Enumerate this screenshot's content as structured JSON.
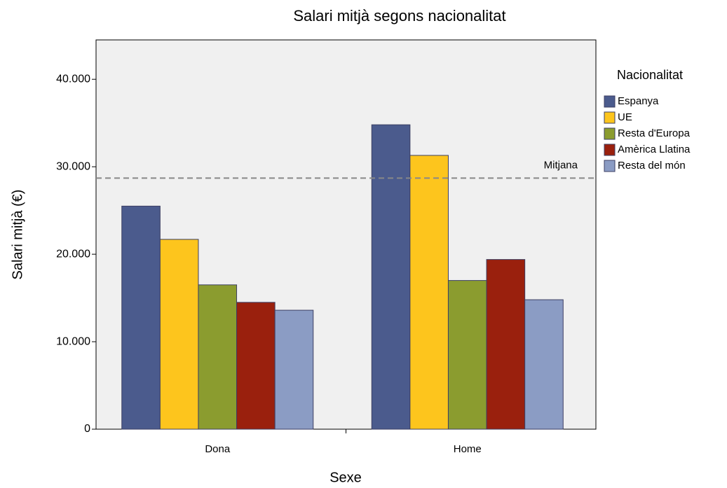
{
  "chart_data": {
    "type": "bar",
    "title": "Salari mitjà segons nacionalitat",
    "x_label": "Sexe",
    "y_label": "Salari mitjà (€)",
    "categories": [
      "Dona",
      "Home"
    ],
    "legend_title": "Nacionalitat",
    "series": [
      {
        "name": "Espanya",
        "color": "#4b5b8d",
        "values": [
          25500,
          34800
        ]
      },
      {
        "name": "UE",
        "color": "#fdc51d",
        "values": [
          21700,
          31300
        ]
      },
      {
        "name": "Resta d'Europa",
        "color": "#8b9c2f",
        "values": [
          16500,
          17000
        ]
      },
      {
        "name": "Amèrica Llatina",
        "color": "#9a200d",
        "values": [
          14500,
          19400
        ]
      },
      {
        "name": "Resta del món",
        "color": "#8b9cc4",
        "values": [
          13600,
          14800
        ]
      }
    ],
    "reference_line": {
      "label": "Mitjana",
      "value": 28700
    },
    "ylim": [
      0,
      44500
    ],
    "yticks": [
      0,
      {
        "value": 10000,
        "label": "10.000"
      },
      {
        "value": 20000,
        "label": "20.000"
      },
      {
        "value": 30000,
        "label": "30.000"
      },
      {
        "value": 40000,
        "label": "40.000"
      }
    ]
  }
}
